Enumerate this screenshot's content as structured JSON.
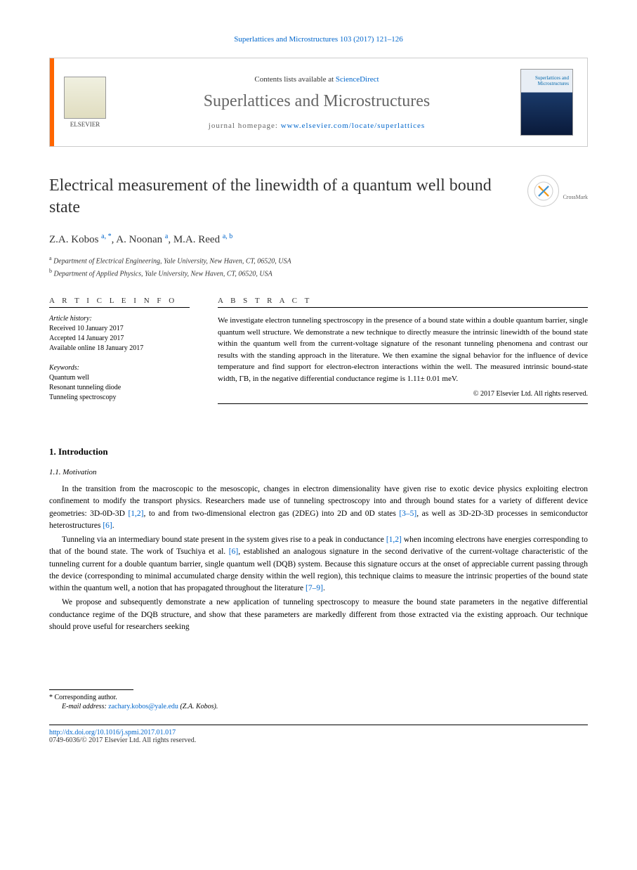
{
  "citation": "Superlattices and Microstructures 103 (2017) 121–126",
  "header": {
    "contents_prefix": "Contents lists available at ",
    "contents_link": "ScienceDirect",
    "journal_name": "Superlattices and Microstructures",
    "homepage_prefix": "journal homepage: ",
    "homepage_url": "www.elsevier.com/locate/superlattices",
    "elsevier_label": "ELSEVIER",
    "cover_title": "Superlattices and Microstructures"
  },
  "crossmark_label": "CrossMark",
  "title": "Electrical measurement of the linewidth of a quantum well bound state",
  "authors_html": "Z.A. Kobos <sup class='sup'>a, *</sup>, A. Noonan <sup class='sup'>a</sup>, M.A. Reed <sup class='sup'>a, b</sup>",
  "affiliations": [
    {
      "sup": "a",
      "text": "Department of Electrical Engineering, Yale University, New Haven, CT, 06520, USA"
    },
    {
      "sup": "b",
      "text": "Department of Applied Physics, Yale University, New Haven, CT, 06520, USA"
    }
  ],
  "article_info_header": "A R T I C L E   I N F O",
  "abstract_header": "A B S T R A C T",
  "history_label": "Article history:",
  "history": [
    "Received 10 January 2017",
    "Accepted 14 January 2017",
    "Available online 18 January 2017"
  ],
  "keywords_label": "Keywords:",
  "keywords": [
    "Quantum well",
    "Resonant tunneling diode",
    "Tunneling spectroscopy"
  ],
  "abstract": "We investigate electron tunneling spectroscopy in the presence of a bound state within a double quantum barrier, single quantum well structure. We demonstrate a new technique to directly measure the intrinsic linewidth of the bound state within the quantum well from the current-voltage signature of the resonant tunneling phenomena and contrast our results with the standing approach in the literature. We then examine the signal behavior for the influence of device temperature and find support for electron-electron interactions within the well. The measured intrinsic bound-state width, ΓB, in the negative differential conductance regime is 1.11± 0.01 meV.",
  "copyright": "© 2017 Elsevier Ltd. All rights reserved.",
  "section1": "1. Introduction",
  "subsection11": "1.1. Motivation",
  "para1": "In the transition from the macroscopic to the mesoscopic, changes in electron dimensionality have given rise to exotic device physics exploiting electron confinement to modify the transport physics. Researchers made use of tunneling spectroscopy into and through bound states for a variety of different device geometries: 3D-0D-3D [1,2], to and from two-dimensional electron gas (2DEG) into 2D and 0D states [3–5], as well as 3D-2D-3D processes in semiconductor heterostructures [6].",
  "para2": "Tunneling via an intermediary bound state present in the system gives rise to a peak in conductance [1,2] when incoming electrons have energies corresponding to that of the bound state. The work of Tsuchiya et al. [6], established an analogous signature in the second derivative of the current-voltage characteristic of the tunneling current for a double quantum barrier, single quantum well (DQB) system. Because this signature occurs at the onset of appreciable current passing through the device (corresponding to minimal accumulated charge density within the well region), this technique claims to measure the intrinsic properties of the bound state within the quantum well, a notion that has propagated throughout the literature [7–9].",
  "para3": "We propose and subsequently demonstrate a new application of tunneling spectroscopy to measure the bound state parameters in the negative differential conductance regime of the DQB structure, and show that these parameters are markedly different from those extracted via the existing approach. Our technique should prove useful for researchers seeking",
  "corr_label": "* Corresponding author.",
  "email_label": "E-mail address:",
  "email": "zachary.kobos@yale.edu",
  "email_name": "(Z.A. Kobos).",
  "doi": "http://dx.doi.org/10.1016/j.spmi.2017.01.017",
  "issn": "0749-6036/© 2017 Elsevier Ltd. All rights reserved.",
  "colors": {
    "link": "#0066cc",
    "orange": "#ff6600",
    "gray_text": "#666666",
    "border": "#cccccc"
  }
}
